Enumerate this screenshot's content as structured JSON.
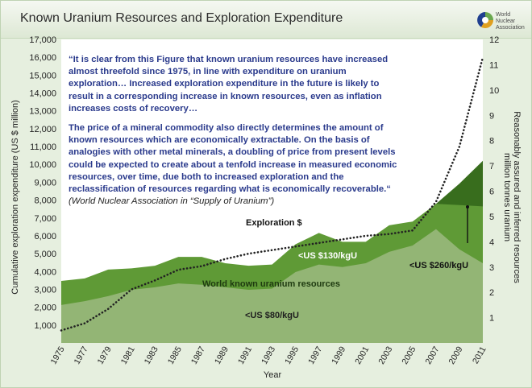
{
  "header": {
    "title": "Known Uranium Resources and Exploration Expenditure",
    "logo_text": [
      "World",
      "Nuclear",
      "Association"
    ],
    "logo_colors": [
      "#6aa84f",
      "#1f3f8f",
      "#e0a020"
    ]
  },
  "quote": {
    "paragraph1": "“It is clear from this Figure that known uranium resources have increased almost threefold since 1975, in line with expenditure on uranium exploration… Increased exploration expenditure in the future is likely to result in a corresponding increase in known resources, even as inflation increases costs of recovery…",
    "paragraph2": "The price of a mineral commodity also directly determines the amount of known resources which are economically extractable. On the basis of analogies with other metal minerals, a doubling of price from present levels could be expected to create about a tenfold increase in measured economic resources, over time, due both to increased exploration and the reclassification of resources regarding what is economically recoverable.“",
    "source": "(World Nuclear Association in “Supply of Uranium”)"
  },
  "chart_data": {
    "type": "area",
    "xlabel": "Year",
    "ylabel_left": "Cumulative exploration expenditure (US $ million)",
    "ylabel_right": [
      "Reasonably assured and inferred resources",
      "million tonnes uranium"
    ],
    "ylim_left": [
      0,
      17000
    ],
    "ylim_right": [
      0,
      12
    ],
    "yticks_left": [
      "1,000",
      "2,000",
      "3,000",
      "4,000",
      "5,000",
      "6,000",
      "7,000",
      "8,000",
      "9,000",
      "10,000",
      "11,000",
      "12,000",
      "13,000",
      "14,000",
      "15,000",
      "16,000",
      "17,000"
    ],
    "yticks_right": [
      "1",
      "2",
      "3",
      "4",
      "5",
      "6",
      "7",
      "8",
      "9",
      "10",
      "11",
      "12"
    ],
    "xticks": [
      "1975",
      "1977",
      "1979",
      "1981",
      "1983",
      "1985",
      "1987",
      "1989",
      "1991",
      "1993",
      "1995",
      "1997",
      "1999",
      "2001",
      "2003",
      "2005",
      "2007",
      "2009",
      "2011"
    ],
    "x": [
      1975,
      1977,
      1979,
      1981,
      1983,
      1985,
      1987,
      1989,
      1991,
      1993,
      1995,
      1997,
      1999,
      2001,
      2003,
      2005,
      2007,
      2009,
      2011
    ],
    "series": [
      {
        "name": "<US $80/kgU",
        "axis": "right",
        "color": "#93b575",
        "values": [
          1.5,
          1.65,
          1.85,
          2.1,
          2.2,
          2.35,
          2.3,
          2.2,
          2.1,
          2.15,
          2.8,
          3.1,
          3.0,
          3.15,
          3.6,
          3.85,
          4.5,
          3.7,
          3.15
        ]
      },
      {
        "name": "<US $130/kgU",
        "axis": "right",
        "color": "#5f9a36",
        "values": [
          2.45,
          2.55,
          2.9,
          2.95,
          3.05,
          3.4,
          3.4,
          3.15,
          3.05,
          3.1,
          3.9,
          4.35,
          4.0,
          4.0,
          4.65,
          4.8,
          5.5,
          5.45,
          5.4
        ]
      },
      {
        "name": "<US $260/kgU",
        "axis": "right",
        "color": "#386d1d",
        "values": [
          null,
          null,
          null,
          null,
          null,
          null,
          null,
          null,
          null,
          null,
          null,
          null,
          null,
          null,
          null,
          null,
          5.5,
          6.3,
          7.2
        ]
      },
      {
        "name": "Exploration $",
        "axis": "left",
        "style": "dotted",
        "color": "#222222",
        "values": [
          700,
          1100,
          1900,
          3000,
          3500,
          4100,
          4300,
          4700,
          5000,
          5200,
          5400,
          5600,
          5800,
          6000,
          6100,
          6300,
          7900,
          11000,
          16000
        ]
      }
    ],
    "annotations": [
      "Exploration $",
      "<US $130/kgU",
      "World known uranium resources",
      "<US $80/kgU",
      "<US $260/kgU"
    ]
  }
}
